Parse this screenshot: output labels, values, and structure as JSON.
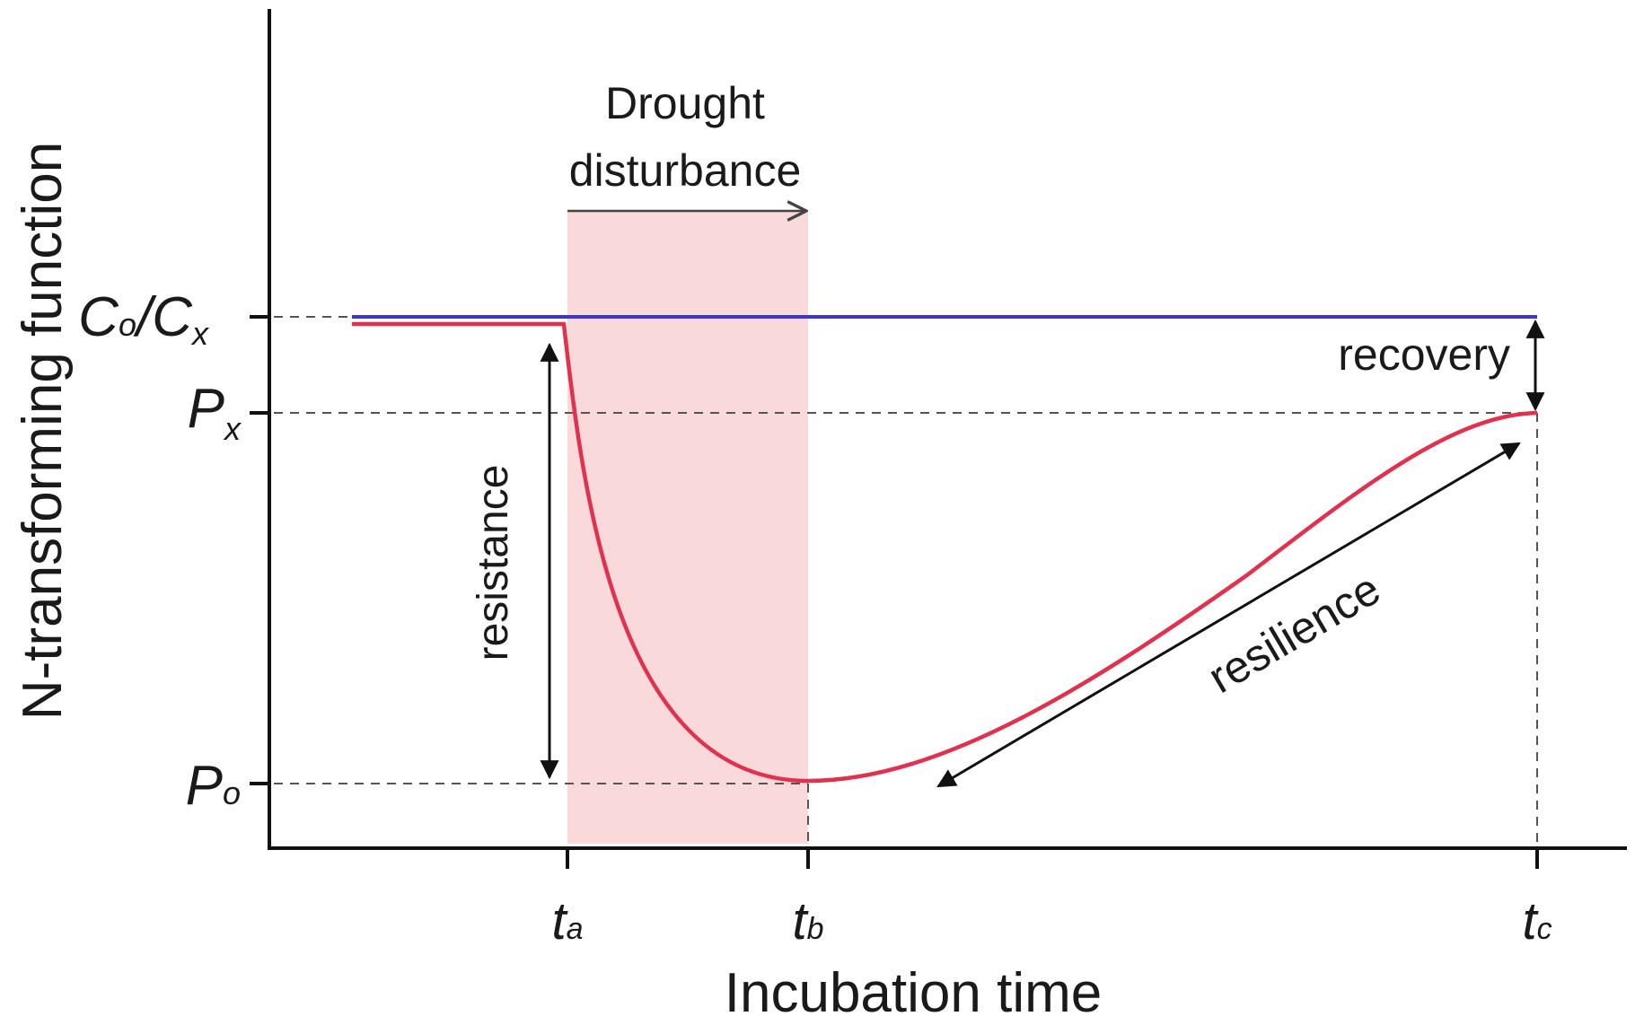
{
  "colors": {
    "axis": "#111111",
    "control_line": "#3b35d6",
    "disturbed_curve": "#e0314e",
    "drought_band": "#f9d9da",
    "dash": "#555555",
    "arrow": "#111111"
  },
  "axes": {
    "y_label": "N-transforming function",
    "x_label": "Incubation time"
  },
  "y_ticks": {
    "c_main": "C",
    "c_sub_0": "o",
    "slash": "/",
    "c_x_main": "C",
    "c_x_sub": "x",
    "px_main": "P",
    "px_sub": "x",
    "po_main": "P",
    "po_sub": "o"
  },
  "x_ticks": {
    "ta_main": "t",
    "ta_sub": "a",
    "tb_main": "t",
    "tb_sub": "b",
    "tc_main": "t",
    "tc_sub": "c"
  },
  "annotations": {
    "drought_line1": "Drought",
    "drought_line2": "disturbance",
    "recovery": "recovery",
    "resistance": "resistance",
    "resilience": "resilience"
  }
}
